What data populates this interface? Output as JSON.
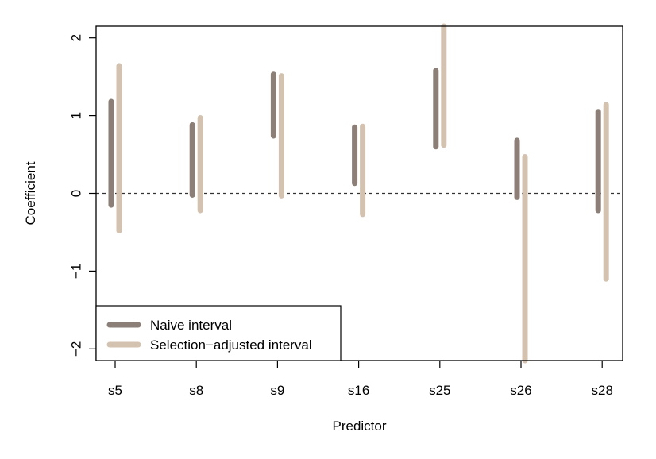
{
  "chart_data": {
    "type": "interval",
    "categories": [
      "s5",
      "s8",
      "s9",
      "s16",
      "s25",
      "s26",
      "s28"
    ],
    "xlabel": "Predictor",
    "ylabel": "Coefficient",
    "ylim": [
      -2.15,
      2.15
    ],
    "yticks": [
      -2,
      -1,
      0,
      1,
      2
    ],
    "ytick_labels": [
      "−2",
      "−1",
      "0",
      "1",
      "2"
    ],
    "reference_line": 0,
    "legend_position": "bottom-left",
    "series": [
      {
        "name": "Naive interval",
        "color": "#8b7f78",
        "intervals": [
          [
            -0.15,
            1.18
          ],
          [
            -0.02,
            0.88
          ],
          [
            0.74,
            1.53
          ],
          [
            0.13,
            0.85
          ],
          [
            0.6,
            1.58
          ],
          [
            -0.05,
            0.68
          ],
          [
            -0.22,
            1.05
          ]
        ]
      },
      {
        "name": "Selection−adjusted interval",
        "color": "#d4c2b0",
        "intervals": [
          [
            -0.48,
            1.64
          ],
          [
            -0.22,
            0.97
          ],
          [
            -0.03,
            1.51
          ],
          [
            -0.27,
            0.86
          ],
          [
            0.62,
            2.15
          ],
          [
            -2.15,
            0.47
          ],
          [
            -1.1,
            1.14
          ]
        ]
      }
    ]
  }
}
